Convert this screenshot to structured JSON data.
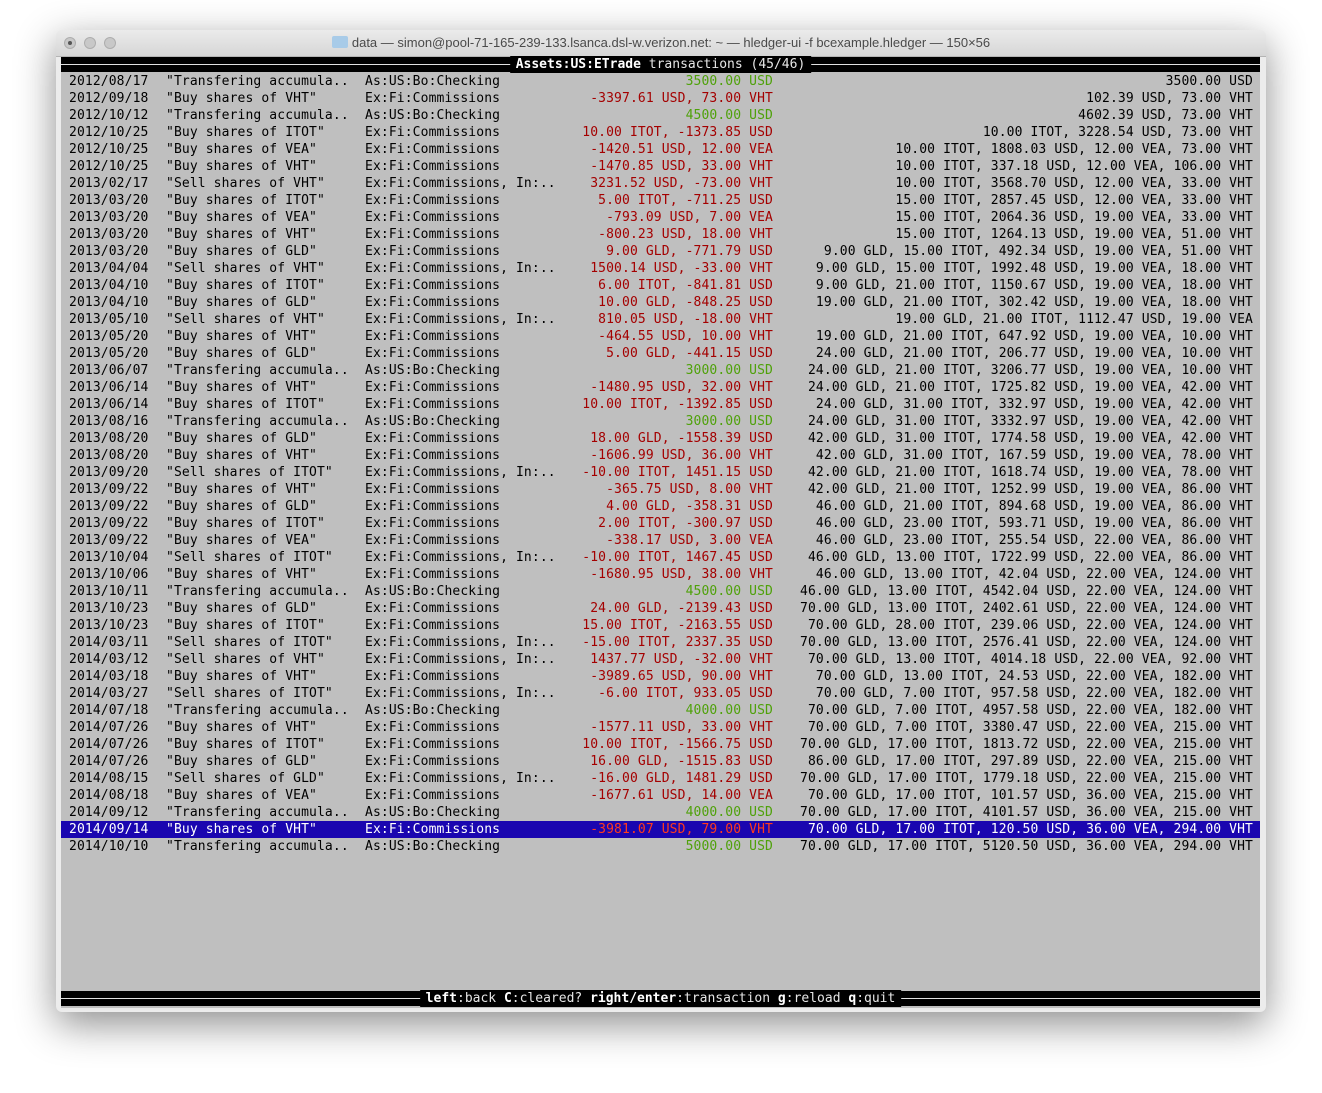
{
  "window": {
    "title": "data — simon@pool-71-165-239-133.lsanca.dsl-w.verizon.net: ~ — hledger-ui -f bcexample.hledger — 150×56"
  },
  "header": {
    "account": "Assets:US:ETrade",
    "suffix": " transactions (45/46)"
  },
  "colors": {
    "positive": "#4fa10a",
    "negative": "#a40000",
    "negative_selected": "#ff3a1c",
    "selected_bg": "#1a06b0",
    "background": "#bfbfbf"
  },
  "selected_index": 44,
  "rows": [
    {
      "date": "2012/08/17",
      "desc": "\"Transfering accumula..",
      "account": "As:US:Bo:Checking",
      "amount": "3500.00 USD",
      "tone": "positive",
      "balance": "3500.00 USD"
    },
    {
      "date": "2012/09/18",
      "desc": "\"Buy shares of VHT\"",
      "account": "Ex:Fi:Commissions",
      "amount": "-3397.61 USD, 73.00 VHT",
      "tone": "negative",
      "balance": "102.39 USD, 73.00 VHT"
    },
    {
      "date": "2012/10/12",
      "desc": "\"Transfering accumula..",
      "account": "As:US:Bo:Checking",
      "amount": "4500.00 USD",
      "tone": "positive",
      "balance": "4602.39 USD, 73.00 VHT"
    },
    {
      "date": "2012/10/25",
      "desc": "\"Buy shares of ITOT\"",
      "account": "Ex:Fi:Commissions",
      "amount": "10.00 ITOT, -1373.85 USD",
      "tone": "negative",
      "balance": "10.00 ITOT, 3228.54 USD, 73.00 VHT"
    },
    {
      "date": "2012/10/25",
      "desc": "\"Buy shares of VEA\"",
      "account": "Ex:Fi:Commissions",
      "amount": "-1420.51 USD, 12.00 VEA",
      "tone": "negative",
      "balance": "10.00 ITOT, 1808.03 USD, 12.00 VEA, 73.00 VHT"
    },
    {
      "date": "2012/10/25",
      "desc": "\"Buy shares of VHT\"",
      "account": "Ex:Fi:Commissions",
      "amount": "-1470.85 USD, 33.00 VHT",
      "tone": "negative",
      "balance": "10.00 ITOT, 337.18 USD, 12.00 VEA, 106.00 VHT"
    },
    {
      "date": "2013/02/17",
      "desc": "\"Sell shares of VHT\"",
      "account": "Ex:Fi:Commissions, In:..",
      "amount": "3231.52 USD, -73.00 VHT",
      "tone": "negative",
      "balance": "10.00 ITOT, 3568.70 USD, 12.00 VEA, 33.00 VHT"
    },
    {
      "date": "2013/03/20",
      "desc": "\"Buy shares of ITOT\"",
      "account": "Ex:Fi:Commissions",
      "amount": "5.00 ITOT, -711.25 USD",
      "tone": "negative",
      "balance": "15.00 ITOT, 2857.45 USD, 12.00 VEA, 33.00 VHT"
    },
    {
      "date": "2013/03/20",
      "desc": "\"Buy shares of VEA\"",
      "account": "Ex:Fi:Commissions",
      "amount": "-793.09 USD, 7.00 VEA",
      "tone": "negative",
      "balance": "15.00 ITOT, 2064.36 USD, 19.00 VEA, 33.00 VHT"
    },
    {
      "date": "2013/03/20",
      "desc": "\"Buy shares of VHT\"",
      "account": "Ex:Fi:Commissions",
      "amount": "-800.23 USD, 18.00 VHT",
      "tone": "negative",
      "balance": "15.00 ITOT, 1264.13 USD, 19.00 VEA, 51.00 VHT"
    },
    {
      "date": "2013/03/20",
      "desc": "\"Buy shares of GLD\"",
      "account": "Ex:Fi:Commissions",
      "amount": "9.00 GLD, -771.79 USD",
      "tone": "negative",
      "balance": "9.00 GLD, 15.00 ITOT, 492.34 USD, 19.00 VEA, 51.00 VHT"
    },
    {
      "date": "2013/04/04",
      "desc": "\"Sell shares of VHT\"",
      "account": "Ex:Fi:Commissions, In:..",
      "amount": "1500.14 USD, -33.00 VHT",
      "tone": "negative",
      "balance": "9.00 GLD, 15.00 ITOT, 1992.48 USD, 19.00 VEA, 18.00 VHT"
    },
    {
      "date": "2013/04/10",
      "desc": "\"Buy shares of ITOT\"",
      "account": "Ex:Fi:Commissions",
      "amount": "6.00 ITOT, -841.81 USD",
      "tone": "negative",
      "balance": "9.00 GLD, 21.00 ITOT, 1150.67 USD, 19.00 VEA, 18.00 VHT"
    },
    {
      "date": "2013/04/10",
      "desc": "\"Buy shares of GLD\"",
      "account": "Ex:Fi:Commissions",
      "amount": "10.00 GLD, -848.25 USD",
      "tone": "negative",
      "balance": "19.00 GLD, 21.00 ITOT, 302.42 USD, 19.00 VEA, 18.00 VHT"
    },
    {
      "date": "2013/05/10",
      "desc": "\"Sell shares of VHT\"",
      "account": "Ex:Fi:Commissions, In:..",
      "amount": "810.05 USD, -18.00 VHT",
      "tone": "negative",
      "balance": "19.00 GLD, 21.00 ITOT, 1112.47 USD, 19.00 VEA"
    },
    {
      "date": "2013/05/20",
      "desc": "\"Buy shares of VHT\"",
      "account": "Ex:Fi:Commissions",
      "amount": "-464.55 USD, 10.00 VHT",
      "tone": "negative",
      "balance": "19.00 GLD, 21.00 ITOT, 647.92 USD, 19.00 VEA, 10.00 VHT"
    },
    {
      "date": "2013/05/20",
      "desc": "\"Buy shares of GLD\"",
      "account": "Ex:Fi:Commissions",
      "amount": "5.00 GLD, -441.15 USD",
      "tone": "negative",
      "balance": "24.00 GLD, 21.00 ITOT, 206.77 USD, 19.00 VEA, 10.00 VHT"
    },
    {
      "date": "2013/06/07",
      "desc": "\"Transfering accumula..",
      "account": "As:US:Bo:Checking",
      "amount": "3000.00 USD",
      "tone": "positive",
      "balance": "24.00 GLD, 21.00 ITOT, 3206.77 USD, 19.00 VEA, 10.00 VHT"
    },
    {
      "date": "2013/06/14",
      "desc": "\"Buy shares of VHT\"",
      "account": "Ex:Fi:Commissions",
      "amount": "-1480.95 USD, 32.00 VHT",
      "tone": "negative",
      "balance": "24.00 GLD, 21.00 ITOT, 1725.82 USD, 19.00 VEA, 42.00 VHT"
    },
    {
      "date": "2013/06/14",
      "desc": "\"Buy shares of ITOT\"",
      "account": "Ex:Fi:Commissions",
      "amount": "10.00 ITOT, -1392.85 USD",
      "tone": "negative",
      "balance": "24.00 GLD, 31.00 ITOT, 332.97 USD, 19.00 VEA, 42.00 VHT"
    },
    {
      "date": "2013/08/16",
      "desc": "\"Transfering accumula..",
      "account": "As:US:Bo:Checking",
      "amount": "3000.00 USD",
      "tone": "positive",
      "balance": "24.00 GLD, 31.00 ITOT, 3332.97 USD, 19.00 VEA, 42.00 VHT"
    },
    {
      "date": "2013/08/20",
      "desc": "\"Buy shares of GLD\"",
      "account": "Ex:Fi:Commissions",
      "amount": "18.00 GLD, -1558.39 USD",
      "tone": "negative",
      "balance": "42.00 GLD, 31.00 ITOT, 1774.58 USD, 19.00 VEA, 42.00 VHT"
    },
    {
      "date": "2013/08/20",
      "desc": "\"Buy shares of VHT\"",
      "account": "Ex:Fi:Commissions",
      "amount": "-1606.99 USD, 36.00 VHT",
      "tone": "negative",
      "balance": "42.00 GLD, 31.00 ITOT, 167.59 USD, 19.00 VEA, 78.00 VHT"
    },
    {
      "date": "2013/09/20",
      "desc": "\"Sell shares of ITOT\"",
      "account": "Ex:Fi:Commissions, In:..",
      "amount": "-10.00 ITOT, 1451.15 USD",
      "tone": "negative",
      "balance": "42.00 GLD, 21.00 ITOT, 1618.74 USD, 19.00 VEA, 78.00 VHT"
    },
    {
      "date": "2013/09/22",
      "desc": "\"Buy shares of VHT\"",
      "account": "Ex:Fi:Commissions",
      "amount": "-365.75 USD, 8.00 VHT",
      "tone": "negative",
      "balance": "42.00 GLD, 21.00 ITOT, 1252.99 USD, 19.00 VEA, 86.00 VHT"
    },
    {
      "date": "2013/09/22",
      "desc": "\"Buy shares of GLD\"",
      "account": "Ex:Fi:Commissions",
      "amount": "4.00 GLD, -358.31 USD",
      "tone": "negative",
      "balance": "46.00 GLD, 21.00 ITOT, 894.68 USD, 19.00 VEA, 86.00 VHT"
    },
    {
      "date": "2013/09/22",
      "desc": "\"Buy shares of ITOT\"",
      "account": "Ex:Fi:Commissions",
      "amount": "2.00 ITOT, -300.97 USD",
      "tone": "negative",
      "balance": "46.00 GLD, 23.00 ITOT, 593.71 USD, 19.00 VEA, 86.00 VHT"
    },
    {
      "date": "2013/09/22",
      "desc": "\"Buy shares of VEA\"",
      "account": "Ex:Fi:Commissions",
      "amount": "-338.17 USD, 3.00 VEA",
      "tone": "negative",
      "balance": "46.00 GLD, 23.00 ITOT, 255.54 USD, 22.00 VEA, 86.00 VHT"
    },
    {
      "date": "2013/10/04",
      "desc": "\"Sell shares of ITOT\"",
      "account": "Ex:Fi:Commissions, In:..",
      "amount": "-10.00 ITOT, 1467.45 USD",
      "tone": "negative",
      "balance": "46.00 GLD, 13.00 ITOT, 1722.99 USD, 22.00 VEA, 86.00 VHT"
    },
    {
      "date": "2013/10/06",
      "desc": "\"Buy shares of VHT\"",
      "account": "Ex:Fi:Commissions",
      "amount": "-1680.95 USD, 38.00 VHT",
      "tone": "negative",
      "balance": "46.00 GLD, 13.00 ITOT, 42.04 USD, 22.00 VEA, 124.00 VHT"
    },
    {
      "date": "2013/10/11",
      "desc": "\"Transfering accumula..",
      "account": "As:US:Bo:Checking",
      "amount": "4500.00 USD",
      "tone": "positive",
      "balance": "46.00 GLD, 13.00 ITOT, 4542.04 USD, 22.00 VEA, 124.00 VHT"
    },
    {
      "date": "2013/10/23",
      "desc": "\"Buy shares of GLD\"",
      "account": "Ex:Fi:Commissions",
      "amount": "24.00 GLD, -2139.43 USD",
      "tone": "negative",
      "balance": "70.00 GLD, 13.00 ITOT, 2402.61 USD, 22.00 VEA, 124.00 VHT"
    },
    {
      "date": "2013/10/23",
      "desc": "\"Buy shares of ITOT\"",
      "account": "Ex:Fi:Commissions",
      "amount": "15.00 ITOT, -2163.55 USD",
      "tone": "negative",
      "balance": "70.00 GLD, 28.00 ITOT, 239.06 USD, 22.00 VEA, 124.00 VHT"
    },
    {
      "date": "2014/03/11",
      "desc": "\"Sell shares of ITOT\"",
      "account": "Ex:Fi:Commissions, In:..",
      "amount": "-15.00 ITOT, 2337.35 USD",
      "tone": "negative",
      "balance": "70.00 GLD, 13.00 ITOT, 2576.41 USD, 22.00 VEA, 124.00 VHT"
    },
    {
      "date": "2014/03/12",
      "desc": "\"Sell shares of VHT\"",
      "account": "Ex:Fi:Commissions, In:..",
      "amount": "1437.77 USD, -32.00 VHT",
      "tone": "negative",
      "balance": "70.00 GLD, 13.00 ITOT, 4014.18 USD, 22.00 VEA, 92.00 VHT"
    },
    {
      "date": "2014/03/18",
      "desc": "\"Buy shares of VHT\"",
      "account": "Ex:Fi:Commissions",
      "amount": "-3989.65 USD, 90.00 VHT",
      "tone": "negative",
      "balance": "70.00 GLD, 13.00 ITOT, 24.53 USD, 22.00 VEA, 182.00 VHT"
    },
    {
      "date": "2014/03/27",
      "desc": "\"Sell shares of ITOT\"",
      "account": "Ex:Fi:Commissions, In:..",
      "amount": "-6.00 ITOT, 933.05 USD",
      "tone": "negative",
      "balance": "70.00 GLD, 7.00 ITOT, 957.58 USD, 22.00 VEA, 182.00 VHT"
    },
    {
      "date": "2014/07/18",
      "desc": "\"Transfering accumula..",
      "account": "As:US:Bo:Checking",
      "amount": "4000.00 USD",
      "tone": "positive",
      "balance": "70.00 GLD, 7.00 ITOT, 4957.58 USD, 22.00 VEA, 182.00 VHT"
    },
    {
      "date": "2014/07/26",
      "desc": "\"Buy shares of VHT\"",
      "account": "Ex:Fi:Commissions",
      "amount": "-1577.11 USD, 33.00 VHT",
      "tone": "negative",
      "balance": "70.00 GLD, 7.00 ITOT, 3380.47 USD, 22.00 VEA, 215.00 VHT"
    },
    {
      "date": "2014/07/26",
      "desc": "\"Buy shares of ITOT\"",
      "account": "Ex:Fi:Commissions",
      "amount": "10.00 ITOT, -1566.75 USD",
      "tone": "negative",
      "balance": "70.00 GLD, 17.00 ITOT, 1813.72 USD, 22.00 VEA, 215.00 VHT"
    },
    {
      "date": "2014/07/26",
      "desc": "\"Buy shares of GLD\"",
      "account": "Ex:Fi:Commissions",
      "amount": "16.00 GLD, -1515.83 USD",
      "tone": "negative",
      "balance": "86.00 GLD, 17.00 ITOT, 297.89 USD, 22.00 VEA, 215.00 VHT"
    },
    {
      "date": "2014/08/15",
      "desc": "\"Sell shares of GLD\"",
      "account": "Ex:Fi:Commissions, In:..",
      "amount": "-16.00 GLD, 1481.29 USD",
      "tone": "negative",
      "balance": "70.00 GLD, 17.00 ITOT, 1779.18 USD, 22.00 VEA, 215.00 VHT"
    },
    {
      "date": "2014/08/18",
      "desc": "\"Buy shares of VEA\"",
      "account": "Ex:Fi:Commissions",
      "amount": "-1677.61 USD, 14.00 VEA",
      "tone": "negative",
      "balance": "70.00 GLD, 17.00 ITOT, 101.57 USD, 36.00 VEA, 215.00 VHT"
    },
    {
      "date": "2014/09/12",
      "desc": "\"Transfering accumula..",
      "account": "As:US:Bo:Checking",
      "amount": "4000.00 USD",
      "tone": "positive",
      "balance": "70.00 GLD, 17.00 ITOT, 4101.57 USD, 36.00 VEA, 215.00 VHT"
    },
    {
      "date": "2014/09/14",
      "desc": "\"Buy shares of VHT\"",
      "account": "Ex:Fi:Commissions",
      "amount": "-3981.07 USD, 79.00 VHT",
      "tone": "negative",
      "balance": "70.00 GLD, 17.00 ITOT, 120.50 USD, 36.00 VEA, 294.00 VHT"
    },
    {
      "date": "2014/10/10",
      "desc": "\"Transfering accumula..",
      "account": "As:US:Bo:Checking",
      "amount": "5000.00 USD",
      "tone": "positive",
      "balance": "70.00 GLD, 17.00 ITOT, 5120.50 USD, 36.00 VEA, 294.00 VHT"
    }
  ],
  "footer": {
    "keys": [
      {
        "key": "left",
        "action": "back"
      },
      {
        "key": "C",
        "action": "cleared?"
      },
      {
        "key": "right/enter",
        "action": "transaction"
      },
      {
        "key": "g",
        "action": "reload"
      },
      {
        "key": "q",
        "action": "quit"
      }
    ]
  }
}
